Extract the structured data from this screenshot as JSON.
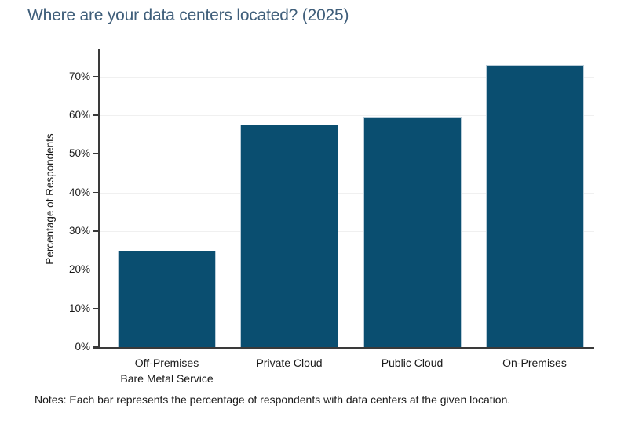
{
  "title": "Where are your data centers located? (2025)",
  "notes": "Notes: Each bar represents the percentage of respondents with data centers at the given location.",
  "colors": {
    "bar": "#0A4E70",
    "title": "#3F5E7A",
    "axis": "#3A3A3A",
    "grid": "#F0F0F0",
    "text": "#1A1A1A"
  },
  "chart_data": {
    "type": "bar",
    "title": "Where are your data centers located? (2025)",
    "categories": [
      "Off-Premises\nBare Metal Service",
      "Private Cloud",
      "Public Cloud",
      "On-Premises"
    ],
    "values": [
      25,
      57.5,
      59.5,
      73
    ],
    "xlabel": "",
    "ylabel": "Percentage of Respondents",
    "ylim": [
      0,
      77
    ],
    "yticks": [
      0,
      10,
      20,
      30,
      40,
      50,
      60,
      70
    ],
    "ytick_labels": [
      "0%",
      "10%",
      "20%",
      "30%",
      "40%",
      "50%",
      "60%",
      "70%"
    ],
    "grid": "horizontal",
    "legend": "none",
    "bar_color": "#0A4E70"
  }
}
